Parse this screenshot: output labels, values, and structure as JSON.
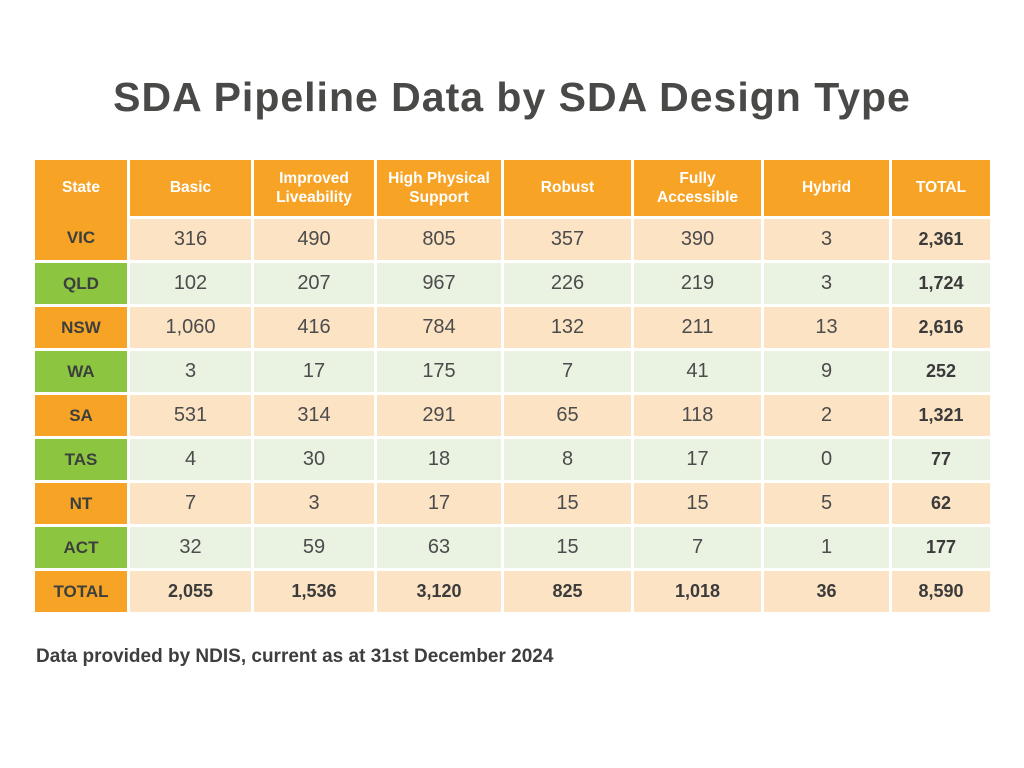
{
  "title": "SDA Pipeline Data by SDA Design Type",
  "footer": {
    "note": "Data provided by NDIS, current as at 31st December 2024"
  },
  "colors": {
    "header_orange": "#F6A326",
    "state_green": "#8CC540",
    "row_peach": "#FBE3C4",
    "row_light_green": "#EAF2E1",
    "text_dark": "#3C3F3D",
    "header_text": "#FFFFFF"
  },
  "chart_data": {
    "type": "table",
    "title": "SDA Pipeline Data by SDA Design Type",
    "columns": [
      "State",
      "Basic",
      "Improved Liveability",
      "High Physical Support",
      "Robust",
      "Fully Accessible",
      "Hybrid",
      "TOTAL"
    ],
    "rows": [
      {
        "state": "VIC",
        "tint": "orange",
        "values": [
          "316",
          "490",
          "805",
          "357",
          "390",
          "3",
          "2,361"
        ]
      },
      {
        "state": "QLD",
        "tint": "green",
        "values": [
          "102",
          "207",
          "967",
          "226",
          "219",
          "3",
          "1,724"
        ]
      },
      {
        "state": "NSW",
        "tint": "orange",
        "values": [
          "1,060",
          "416",
          "784",
          "132",
          "211",
          "13",
          "2,616"
        ]
      },
      {
        "state": "WA",
        "tint": "green",
        "values": [
          "3",
          "17",
          "175",
          "7",
          "41",
          "9",
          "252"
        ]
      },
      {
        "state": "SA",
        "tint": "orange",
        "values": [
          "531",
          "314",
          "291",
          "65",
          "118",
          "2",
          "1,321"
        ]
      },
      {
        "state": "TAS",
        "tint": "green",
        "values": [
          "4",
          "30",
          "18",
          "8",
          "17",
          "0",
          "77"
        ]
      },
      {
        "state": "NT",
        "tint": "orange",
        "values": [
          "7",
          "3",
          "17",
          "15",
          "15",
          "5",
          "62"
        ]
      },
      {
        "state": "ACT",
        "tint": "green",
        "values": [
          "32",
          "59",
          "63",
          "15",
          "7",
          "1",
          "177"
        ]
      },
      {
        "state": "TOTAL",
        "tint": "total",
        "values": [
          "2,055",
          "1,536",
          "3,120",
          "825",
          "1,018",
          "36",
          "8,590"
        ]
      }
    ]
  }
}
